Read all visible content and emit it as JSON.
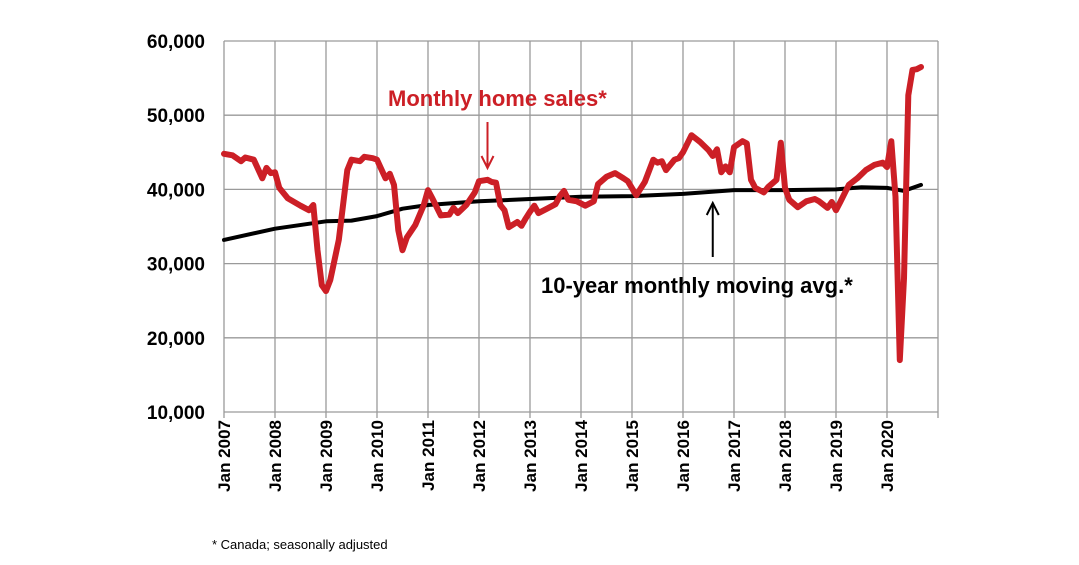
{
  "chart_data": {
    "type": "line",
    "title": "",
    "xlabel": "",
    "ylabel": "",
    "ylim": [
      10000,
      60000
    ],
    "yticks": [
      10000,
      20000,
      30000,
      40000,
      50000,
      60000
    ],
    "ytick_labels": [
      "10,000",
      "20,000",
      "30,000",
      "40,000",
      "50,000",
      "60,000"
    ],
    "xlim": [
      "2007-01",
      "2021-01"
    ],
    "xtick_labels": [
      "Jan 2007",
      "Jan 2008",
      "Jan 2009",
      "Jan 2010",
      "Jan 2011",
      "Jan 2012",
      "Jan 2013",
      "Jan 2014",
      "Jan 2015",
      "Jan 2016",
      "Jan 2017",
      "Jan 2018",
      "Jan 2019",
      "Jan 2020"
    ],
    "grid": true,
    "series": [
      {
        "name": "Monthly home sales*",
        "color": "#cc1f26",
        "points": [
          [
            "2007-01",
            44800
          ],
          [
            "2007-03",
            44600
          ],
          [
            "2007-05",
            43800
          ],
          [
            "2007-06",
            44300
          ],
          [
            "2007-08",
            44000
          ],
          [
            "2007-10",
            41500
          ],
          [
            "2007-11",
            42900
          ],
          [
            "2007-12",
            42200
          ],
          [
            "2008-01",
            42300
          ],
          [
            "2008-02",
            40200
          ],
          [
            "2008-04",
            38800
          ],
          [
            "2008-07",
            37800
          ],
          [
            "2008-09",
            37200
          ],
          [
            "2008-10",
            37900
          ],
          [
            "2008-11",
            31800
          ],
          [
            "2008-12",
            27100
          ],
          [
            "2009-01",
            26300
          ],
          [
            "2009-02",
            27800
          ],
          [
            "2009-04",
            33200
          ],
          [
            "2009-06",
            42600
          ],
          [
            "2009-07",
            44000
          ],
          [
            "2009-09",
            43800
          ],
          [
            "2009-10",
            44400
          ],
          [
            "2009-12",
            44200
          ],
          [
            "2010-01",
            44000
          ],
          [
            "2010-03",
            41500
          ],
          [
            "2010-04",
            42100
          ],
          [
            "2010-05",
            40600
          ],
          [
            "2010-06",
            34500
          ],
          [
            "2010-07",
            31800
          ],
          [
            "2010-08",
            33500
          ],
          [
            "2010-10",
            35200
          ],
          [
            "2010-12",
            37900
          ],
          [
            "2011-01",
            39900
          ],
          [
            "2011-02",
            38800
          ],
          [
            "2011-04",
            36500
          ],
          [
            "2011-06",
            36600
          ],
          [
            "2011-07",
            37500
          ],
          [
            "2011-08",
            36800
          ],
          [
            "2011-10",
            37900
          ],
          [
            "2011-12",
            39600
          ],
          [
            "2012-01",
            41100
          ],
          [
            "2012-03",
            41300
          ],
          [
            "2012-04",
            41000
          ],
          [
            "2012-05",
            40900
          ],
          [
            "2012-06",
            37900
          ],
          [
            "2012-07",
            37200
          ],
          [
            "2012-08",
            34900
          ],
          [
            "2012-10",
            35600
          ],
          [
            "2012-11",
            35100
          ],
          [
            "2012-12",
            36100
          ],
          [
            "2013-01",
            37000
          ],
          [
            "2013-02",
            37800
          ],
          [
            "2013-03",
            36800
          ],
          [
            "2013-05",
            37400
          ],
          [
            "2013-07",
            38000
          ],
          [
            "2013-08",
            39100
          ],
          [
            "2013-09",
            39800
          ],
          [
            "2013-10",
            38600
          ],
          [
            "2013-12",
            38400
          ],
          [
            "2014-02",
            37800
          ],
          [
            "2014-04",
            38400
          ],
          [
            "2014-05",
            40700
          ],
          [
            "2014-07",
            41700
          ],
          [
            "2014-09",
            42200
          ],
          [
            "2014-11",
            41500
          ],
          [
            "2014-12",
            41100
          ],
          [
            "2015-02",
            39200
          ],
          [
            "2015-04",
            41000
          ],
          [
            "2015-06",
            44000
          ],
          [
            "2015-07",
            43600
          ],
          [
            "2015-08",
            43800
          ],
          [
            "2015-09",
            42600
          ],
          [
            "2015-11",
            44000
          ],
          [
            "2015-12",
            44200
          ],
          [
            "2016-01",
            45000
          ],
          [
            "2016-03",
            47300
          ],
          [
            "2016-05",
            46400
          ],
          [
            "2016-07",
            45300
          ],
          [
            "2016-08",
            44500
          ],
          [
            "2016-09",
            45400
          ],
          [
            "2016-10",
            42300
          ],
          [
            "2016-11",
            43100
          ],
          [
            "2016-12",
            42300
          ],
          [
            "2017-01",
            45700
          ],
          [
            "2017-03",
            46500
          ],
          [
            "2017-04",
            46200
          ],
          [
            "2017-05",
            41300
          ],
          [
            "2017-06",
            40200
          ],
          [
            "2017-08",
            39600
          ],
          [
            "2017-09",
            40300
          ],
          [
            "2017-11",
            41300
          ],
          [
            "2017-12",
            46300
          ],
          [
            "2018-01",
            40200
          ],
          [
            "2018-02",
            38600
          ],
          [
            "2018-04",
            37600
          ],
          [
            "2018-06",
            38400
          ],
          [
            "2018-08",
            38700
          ],
          [
            "2018-09",
            38400
          ],
          [
            "2018-11",
            37500
          ],
          [
            "2018-12",
            38300
          ],
          [
            "2019-01",
            37200
          ],
          [
            "2019-02",
            38300
          ],
          [
            "2019-04",
            40600
          ],
          [
            "2019-06",
            41500
          ],
          [
            "2019-08",
            42600
          ],
          [
            "2019-10",
            43300
          ],
          [
            "2019-12",
            43600
          ],
          [
            "2020-01",
            43000
          ],
          [
            "2020-02",
            46500
          ],
          [
            "2020-03",
            39000
          ],
          [
            "2020-04",
            17000
          ],
          [
            "2020-05",
            28000
          ],
          [
            "2020-06",
            52700
          ],
          [
            "2020-07",
            56100
          ],
          [
            "2020-08",
            56200
          ],
          [
            "2020-09",
            56500
          ]
        ]
      },
      {
        "name": "10-year monthly moving avg.*",
        "color": "#000000",
        "points": [
          [
            "2007-01",
            33200
          ],
          [
            "2008-01",
            34700
          ],
          [
            "2009-01",
            35700
          ],
          [
            "2009-07",
            35800
          ],
          [
            "2010-01",
            36400
          ],
          [
            "2010-07",
            37400
          ],
          [
            "2011-01",
            37900
          ],
          [
            "2012-01",
            38400
          ],
          [
            "2013-01",
            38700
          ],
          [
            "2014-01",
            39000
          ],
          [
            "2015-01",
            39100
          ],
          [
            "2016-01",
            39400
          ],
          [
            "2017-01",
            39900
          ],
          [
            "2018-01",
            39900
          ],
          [
            "2019-01",
            40000
          ],
          [
            "2019-07",
            40300
          ],
          [
            "2020-01",
            40200
          ],
          [
            "2020-05",
            39800
          ],
          [
            "2020-09",
            40600
          ]
        ]
      }
    ],
    "annotations": [
      {
        "text": "Monthly home sales*",
        "color": "#cc1f26",
        "arrow_to": [
          "2012-03",
          41300
        ]
      },
      {
        "text": "10-year monthly moving avg.*",
        "color": "#000000",
        "arrow_to": [
          "2016-08",
          39600
        ]
      }
    ],
    "footnote": "* Canada; seasonally adjusted"
  }
}
